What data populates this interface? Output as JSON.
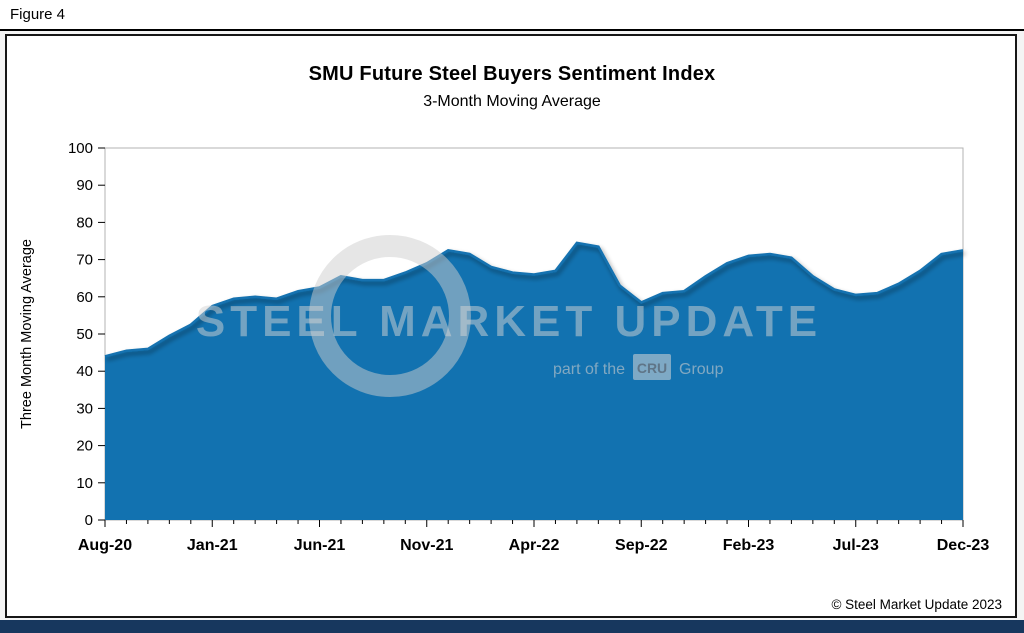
{
  "figure_label": "Figure 4",
  "footer": {
    "copyright": "© Steel Market Update 2023"
  },
  "watermark": {
    "line1": "STEEL MARKET UPDATE",
    "line2_prefix": "part of the",
    "line2_badge": "CRU",
    "line2_suffix": "Group"
  },
  "colors": {
    "area": "#1272b0",
    "bottom_bar": "#17375e",
    "plot_border": "#b3b3b3"
  },
  "chart_data": {
    "type": "area",
    "title": "SMU Future Steel Buyers Sentiment Index",
    "subtitle": "3-Month Moving Average",
    "ylabel": "Three Month Moving Average",
    "xlabel": "",
    "ylim": [
      0,
      100
    ],
    "y_ticks": [
      0,
      10,
      20,
      30,
      40,
      50,
      60,
      70,
      80,
      90,
      100
    ],
    "grid": false,
    "legend": "none",
    "series_color": "#1272b0",
    "xtick_step": 5,
    "xtick_labels": [
      "Aug-20",
      "Jan-21",
      "Jun-21",
      "Nov-21",
      "Apr-22",
      "Sep-22",
      "Feb-23",
      "Jul-23",
      "Dec-23"
    ],
    "x": [
      "Aug-20",
      "Sep-20",
      "Oct-20",
      "Nov-20",
      "Dec-20",
      "Jan-21",
      "Feb-21",
      "Mar-21",
      "Apr-21",
      "May-21",
      "Jun-21",
      "Jul-21",
      "Aug-21",
      "Sep-21",
      "Oct-21",
      "Nov-21",
      "Dec-21",
      "Jan-22",
      "Feb-22",
      "Mar-22",
      "Apr-22",
      "May-22",
      "Jun-22",
      "Jul-22",
      "Aug-22",
      "Sep-22",
      "Oct-22",
      "Nov-22",
      "Dec-22",
      "Jan-23",
      "Feb-23",
      "Mar-23",
      "Apr-23",
      "May-23",
      "Jun-23",
      "Jul-23",
      "Aug-23",
      "Sep-23",
      "Oct-23",
      "Nov-23",
      "Dec-23"
    ],
    "values": [
      44,
      45.5,
      46,
      49.5,
      52.5,
      57.5,
      59.5,
      60,
      59.5,
      61.5,
      62.5,
      65.5,
      64.5,
      64.5,
      66.5,
      69,
      72.5,
      71.5,
      68,
      66.5,
      66,
      67,
      74.5,
      73.5,
      63,
      58.5,
      61,
      61.5,
      65.5,
      69,
      71,
      71.5,
      70.5,
      65.5,
      62,
      60.5,
      61,
      63.5,
      67,
      71.5,
      72.5
    ]
  }
}
